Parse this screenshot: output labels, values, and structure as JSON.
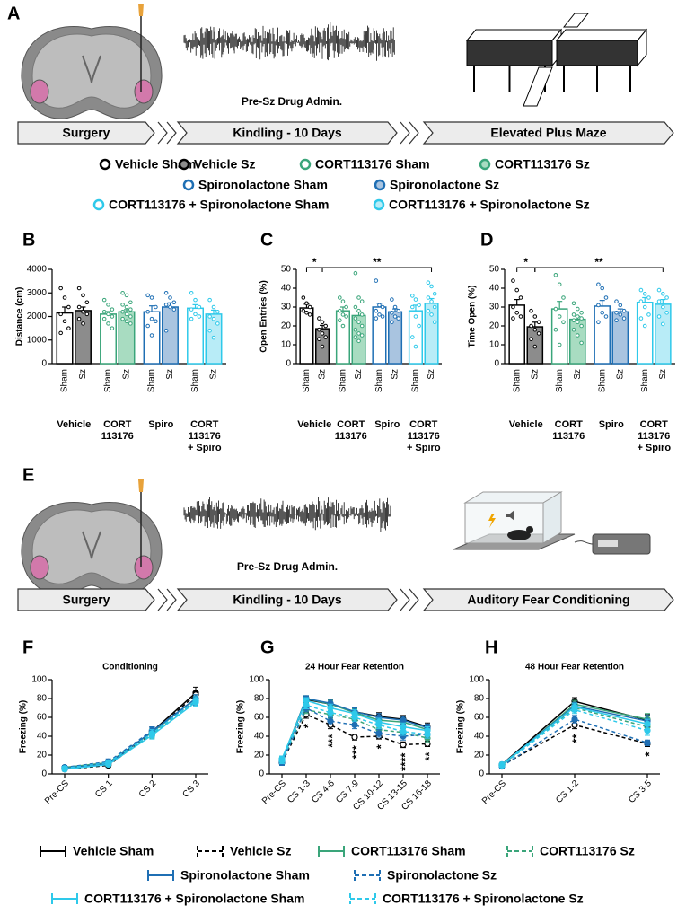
{
  "panel_labels": [
    "A",
    "B",
    "C",
    "D",
    "E",
    "F",
    "G",
    "H"
  ],
  "schematic_a": {
    "drug_admin": "Pre-Sz Drug Admin.",
    "timeline": [
      "Surgery",
      "Kindling - 10 Days",
      "Elevated Plus Maze"
    ]
  },
  "schematic_e": {
    "drug_admin": "Pre-Sz Drug Admin.",
    "timeline": [
      "Surgery",
      "Kindling - 10 Days",
      "Auditory Fear Conditioning"
    ]
  },
  "group_legend": [
    {
      "name": "Vehicle Sham",
      "color": "#000000",
      "fill": "#ffffff"
    },
    {
      "name": "Vehicle Sz",
      "color": "#000000",
      "fill": "#8c8c8c"
    },
    {
      "name": "CORT113176 Sham",
      "color": "#3aa57a",
      "fill": "#ffffff"
    },
    {
      "name": "CORT113176 Sz",
      "color": "#3aa57a",
      "fill": "#a8dcc1"
    },
    {
      "name": "Spironolactone Sham",
      "color": "#1f6fb4",
      "fill": "#ffffff"
    },
    {
      "name": "Spironolactone Sz",
      "color": "#1f6fb4",
      "fill": "#a9c4e0"
    },
    {
      "name": "CORT113176 + Spironolactone Sham",
      "color": "#2ec9ea",
      "fill": "#ffffff"
    },
    {
      "name": "CORT113176 + Spironolactone Sz",
      "color": "#2ec9ea",
      "fill": "#b8ecf7"
    }
  ],
  "chart_data": [
    {
      "type": "bar",
      "y_label": "Distance (cm)",
      "categories": [
        "Sham",
        "Sz",
        "Sham",
        "Sz",
        "Sham",
        "Sz",
        "Sham",
        "Sz"
      ],
      "groups": [
        [
          "Vehicle"
        ],
        [
          "CORT",
          "113176"
        ],
        [
          "Spiro"
        ],
        [
          "CORT",
          "113176",
          "+ Spiro"
        ]
      ],
      "values": [
        2150,
        2250,
        2100,
        2200,
        2200,
        2400,
        2350,
        2100
      ],
      "errors": [
        250,
        150,
        110,
        90,
        250,
        180,
        150,
        170
      ],
      "colors": [
        "#000000",
        "#000000",
        "#3aa57a",
        "#3aa57a",
        "#1f6fb4",
        "#1f6fb4",
        "#2ec9ea",
        "#2ec9ea"
      ],
      "fills": [
        "#ffffff",
        "#8c8c8c",
        "#ffffff",
        "#a8dcc1",
        "#ffffff",
        "#a9c4e0",
        "#ffffff",
        "#b8ecf7"
      ],
      "points": [
        [
          3200,
          2800,
          2400,
          2100,
          1800,
          1500,
          1300
        ],
        [
          3200,
          2900,
          2600,
          2400,
          2200,
          2100,
          1900,
          1700
        ],
        [
          2700,
          2500,
          2300,
          2200,
          2100,
          2000,
          1900,
          1700,
          1500
        ],
        [
          3000,
          2900,
          2600,
          2500,
          2400,
          2300,
          2200,
          2100,
          2000,
          1900,
          1800,
          1700
        ],
        [
          2900,
          2800,
          2400,
          2200,
          1900,
          1800,
          1600,
          1200
        ],
        [
          3000,
          2800,
          2600,
          2500,
          2400,
          2300,
          1400
        ],
        [
          3000,
          2700,
          2400,
          2300,
          2100,
          2000,
          1900
        ],
        [
          2700,
          2400,
          2200,
          2000,
          1900,
          1700,
          1400,
          1100
        ]
      ],
      "ylim": [
        0,
        4000
      ],
      "yticks": [
        0,
        1000,
        2000,
        3000,
        4000
      ],
      "annotations": []
    },
    {
      "type": "bar",
      "y_label": "Open Entries (%)",
      "categories": [
        "Sham",
        "Sz",
        "Sham",
        "Sz",
        "Sham",
        "Sz",
        "Sham",
        "Sz"
      ],
      "groups": [
        [
          "Vehicle"
        ],
        [
          "CORT",
          "113176"
        ],
        [
          "Spiro"
        ],
        [
          "CORT",
          "113176",
          "+ Spiro"
        ]
      ],
      "values": [
        29.5,
        18.5,
        28,
        25.5,
        30,
        27.5,
        28,
        32
      ],
      "errors": [
        2,
        1.8,
        2,
        2,
        2,
        1.5,
        3,
        2.5
      ],
      "colors": [
        "#000000",
        "#000000",
        "#3aa57a",
        "#3aa57a",
        "#1f6fb4",
        "#1f6fb4",
        "#2ec9ea",
        "#2ec9ea"
      ],
      "fills": [
        "#ffffff",
        "#8c8c8c",
        "#ffffff",
        "#a8dcc1",
        "#ffffff",
        "#a9c4e0",
        "#ffffff",
        "#b8ecf7"
      ],
      "points": [
        [
          35,
          32,
          30,
          28,
          27,
          26
        ],
        [
          24,
          22,
          20,
          18,
          16,
          14,
          13,
          9
        ],
        [
          35,
          33,
          30,
          28,
          26,
          25,
          23,
          20
        ],
        [
          48,
          35,
          33,
          30,
          28,
          26,
          24,
          22,
          20,
          18,
          16,
          15,
          14,
          12
        ],
        [
          44,
          31,
          30,
          28,
          26,
          25,
          24
        ],
        [
          34,
          30,
          28,
          27,
          25,
          24,
          22
        ],
        [
          36,
          34,
          31,
          30,
          25,
          20,
          14,
          9
        ],
        [
          43,
          41,
          37,
          35,
          33,
          30,
          28,
          26,
          22
        ]
      ],
      "ylim": [
        0,
        50
      ],
      "yticks": [
        0,
        10,
        20,
        30,
        40,
        50
      ],
      "annotations": [
        {
          "text": "*",
          "from": 0,
          "to": 1
        },
        {
          "text": "**",
          "from": 1,
          "to": 7
        }
      ]
    },
    {
      "type": "bar",
      "y_label": "Time Open (%)",
      "categories": [
        "Sham",
        "Sz",
        "Sham",
        "Sz",
        "Sham",
        "Sz",
        "Sham",
        "Sz"
      ],
      "groups": [
        [
          "Vehicle"
        ],
        [
          "CORT",
          "113176"
        ],
        [
          "Spiro"
        ],
        [
          "CORT",
          "113176",
          "+ Spiro"
        ]
      ],
      "values": [
        31,
        19.5,
        29,
        23.5,
        30.5,
        27.5,
        32.5,
        31.5
      ],
      "errors": [
        3,
        2.5,
        4,
        1.5,
        3,
        1.5,
        2.5,
        2.5
      ],
      "colors": [
        "#000000",
        "#000000",
        "#3aa57a",
        "#3aa57a",
        "#1f6fb4",
        "#1f6fb4",
        "#2ec9ea",
        "#2ec9ea"
      ],
      "fills": [
        "#ffffff",
        "#8c8c8c",
        "#ffffff",
        "#a8dcc1",
        "#ffffff",
        "#a9c4e0",
        "#ffffff",
        "#b8ecf7"
      ],
      "points": [
        [
          44,
          39,
          35,
          30,
          27,
          25,
          24
        ],
        [
          28,
          25,
          22,
          20,
          18,
          16,
          13,
          9
        ],
        [
          47,
          42,
          35,
          29,
          25,
          22,
          18,
          10
        ],
        [
          32,
          29,
          27,
          26,
          25,
          24,
          23,
          22,
          20,
          18,
          15,
          11
        ],
        [
          42,
          40,
          35,
          31,
          27,
          25,
          22
        ],
        [
          33,
          31,
          28,
          27,
          26,
          24,
          23
        ],
        [
          39,
          37,
          35,
          33,
          30,
          26,
          24,
          20
        ],
        [
          39,
          37,
          35,
          33,
          30,
          27,
          25,
          21
        ]
      ],
      "ylim": [
        0,
        50
      ],
      "yticks": [
        0,
        10,
        20,
        30,
        40,
        50
      ],
      "annotations": [
        {
          "text": "*",
          "from": 0,
          "to": 1
        },
        {
          "text": "**",
          "from": 1,
          "to": 7
        }
      ]
    },
    {
      "type": "line",
      "title": "Conditioning",
      "y_label": "Freezing (%)",
      "categories": [
        "Pre-CS",
        "CS 1",
        "CS 2",
        "CS 3"
      ],
      "ylim": [
        0,
        100
      ],
      "yticks": [
        0,
        20,
        40,
        60,
        80,
        100
      ],
      "annotations": [
        null,
        null,
        null,
        null
      ],
      "series": [
        {
          "name": "Vehicle Sham",
          "color": "#000000",
          "dashed": false,
          "marker_fill": "#000000",
          "values": [
            6,
            10,
            45,
            86
          ],
          "errors": [
            2,
            2,
            5,
            6
          ]
        },
        {
          "name": "Vehicle Sz",
          "color": "#000000",
          "dashed": true,
          "marker_fill": "#ffffff",
          "values": [
            5,
            9,
            43,
            84
          ],
          "errors": [
            2,
            2,
            4,
            5
          ]
        },
        {
          "name": "CORT113176 Sham",
          "color": "#3aa57a",
          "dashed": false,
          "marker_fill": "#3aa57a",
          "values": [
            7,
            12,
            44,
            80
          ],
          "errors": [
            2,
            3,
            4,
            4
          ]
        },
        {
          "name": "CORT113176 Sz",
          "color": "#3aa57a",
          "dashed": true,
          "marker_fill": "#3aa57a",
          "values": [
            6,
            11,
            42,
            78
          ],
          "errors": [
            2,
            2,
            4,
            4
          ]
        },
        {
          "name": "Spironolactone Sham",
          "color": "#1f6fb4",
          "dashed": false,
          "marker_fill": "#1f6fb4",
          "values": [
            6,
            11,
            45,
            80
          ],
          "errors": [
            2,
            2,
            4,
            4
          ]
        },
        {
          "name": "Spironolactone Sz",
          "color": "#1f6fb4",
          "dashed": true,
          "marker_fill": "#1f6fb4",
          "values": [
            7,
            13,
            46,
            77
          ],
          "errors": [
            2,
            3,
            4,
            4
          ]
        },
        {
          "name": "CORT113176 + Spironolactone Sham",
          "color": "#2ec9ea",
          "dashed": false,
          "marker_fill": "#2ec9ea",
          "values": [
            5,
            10,
            41,
            76
          ],
          "errors": [
            2,
            2,
            4,
            4
          ]
        },
        {
          "name": "CORT113176 + Spironolactone Sz",
          "color": "#2ec9ea",
          "dashed": true,
          "marker_fill": "#2ec9ea",
          "values": [
            6,
            12,
            43,
            78
          ],
          "errors": [
            2,
            2,
            4,
            4
          ]
        }
      ]
    },
    {
      "type": "line",
      "title": "24 Hour Fear Retention",
      "y_label": "Freezing (%)",
      "categories": [
        "Pre-CS",
        "CS 1-3",
        "CS 4-6",
        "CS 7-9",
        "CS 10-12",
        "CS 13-15",
        "CS 16-18"
      ],
      "ylim": [
        0,
        100
      ],
      "yticks": [
        0,
        20,
        40,
        60,
        80,
        100
      ],
      "annotations": [
        null,
        "*",
        "***",
        "***",
        "*",
        "****",
        "**"
      ],
      "series": [
        {
          "color": "#000000",
          "dashed": false,
          "marker_fill": "#000000",
          "values": [
            13,
            79,
            74,
            66,
            61,
            58,
            50
          ],
          "errors": [
            3,
            3,
            4,
            4,
            4,
            4,
            4
          ]
        },
        {
          "color": "#000000",
          "dashed": true,
          "marker_fill": "#ffffff",
          "values": [
            12,
            63,
            52,
            39,
            40,
            31,
            32
          ],
          "errors": [
            3,
            4,
            4,
            3,
            3,
            3,
            3
          ]
        },
        {
          "color": "#3aa57a",
          "dashed": false,
          "marker_fill": "#3aa57a",
          "values": [
            15,
            80,
            74,
            65,
            57,
            55,
            47
          ],
          "errors": [
            3,
            3,
            4,
            4,
            4,
            4,
            4
          ]
        },
        {
          "color": "#3aa57a",
          "dashed": true,
          "marker_fill": "#3aa57a",
          "values": [
            13,
            68,
            63,
            58,
            47,
            44,
            38
          ],
          "errors": [
            3,
            4,
            4,
            4,
            4,
            4,
            4
          ]
        },
        {
          "color": "#1f6fb4",
          "dashed": false,
          "marker_fill": "#1f6fb4",
          "values": [
            14,
            80,
            75,
            66,
            60,
            57,
            49
          ],
          "errors": [
            3,
            3,
            4,
            4,
            4,
            4,
            4
          ]
        },
        {
          "color": "#1f6fb4",
          "dashed": true,
          "marker_fill": "#1f6fb4",
          "values": [
            12,
            70,
            56,
            52,
            43,
            40,
            42
          ],
          "errors": [
            3,
            4,
            4,
            4,
            4,
            4,
            4
          ]
        },
        {
          "color": "#2ec9ea",
          "dashed": false,
          "marker_fill": "#2ec9ea",
          "values": [
            16,
            78,
            70,
            64,
            55,
            50,
            46
          ],
          "errors": [
            3,
            3,
            4,
            4,
            4,
            4,
            4
          ]
        },
        {
          "color": "#2ec9ea",
          "dashed": true,
          "marker_fill": "#2ec9ea",
          "values": [
            14,
            73,
            65,
            60,
            52,
            45,
            42
          ],
          "errors": [
            3,
            4,
            4,
            4,
            4,
            4,
            4
          ]
        }
      ]
    },
    {
      "type": "line",
      "title": "48 Hour Fear Retention",
      "y_label": "Freezing (%)",
      "categories": [
        "Pre-CS",
        "CS 1-2",
        "CS 3-5"
      ],
      "ylim": [
        0,
        100
      ],
      "yticks": [
        0,
        20,
        40,
        60,
        80,
        100
      ],
      "annotations": [
        null,
        "**",
        "*"
      ],
      "series": [
        {
          "color": "#000000",
          "dashed": false,
          "marker_fill": "#000000",
          "values": [
            10,
            77,
            57
          ],
          "errors": [
            2,
            4,
            6
          ]
        },
        {
          "color": "#000000",
          "dashed": true,
          "marker_fill": "#ffffff",
          "values": [
            9,
            52,
            32
          ],
          "errors": [
            2,
            4,
            3
          ]
        },
        {
          "color": "#3aa57a",
          "dashed": false,
          "marker_fill": "#3aa57a",
          "values": [
            9,
            74,
            58
          ],
          "errors": [
            2,
            4,
            6
          ]
        },
        {
          "color": "#3aa57a",
          "dashed": true,
          "marker_fill": "#3aa57a",
          "values": [
            9,
            70,
            50
          ],
          "errors": [
            2,
            4,
            5
          ]
        },
        {
          "color": "#1f6fb4",
          "dashed": false,
          "marker_fill": "#1f6fb4",
          "values": [
            10,
            72,
            56
          ],
          "errors": [
            2,
            4,
            6
          ]
        },
        {
          "color": "#1f6fb4",
          "dashed": true,
          "marker_fill": "#1f6fb4",
          "values": [
            8,
            58,
            33
          ],
          "errors": [
            2,
            4,
            3
          ]
        },
        {
          "color": "#2ec9ea",
          "dashed": false,
          "marker_fill": "#2ec9ea",
          "values": [
            10,
            71,
            53
          ],
          "errors": [
            2,
            4,
            5
          ]
        },
        {
          "color": "#2ec9ea",
          "dashed": true,
          "marker_fill": "#2ec9ea",
          "values": [
            9,
            68,
            46
          ],
          "errors": [
            2,
            4,
            5
          ]
        }
      ]
    }
  ]
}
